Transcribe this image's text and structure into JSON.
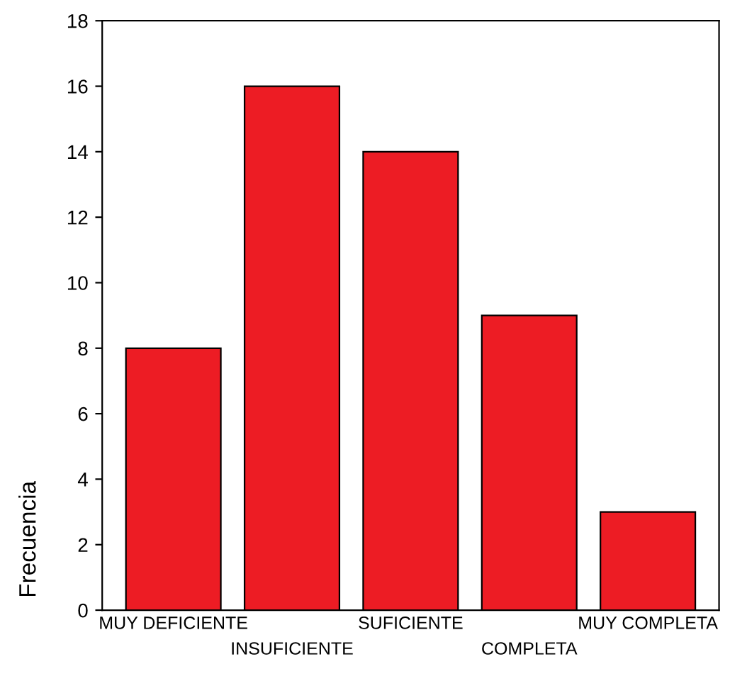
{
  "chart_data": {
    "type": "bar",
    "ylabel": "Frecuencia",
    "categories": [
      "MUY DEFICIENTE",
      "INSUFICIENTE",
      "SUFICIENTE",
      "COMPLETA",
      "MUY COMPLETA"
    ],
    "values": [
      8,
      16,
      14,
      9,
      3
    ],
    "color": "#ed1c24",
    "ylim": [
      0,
      18
    ],
    "yticks": [
      0,
      2,
      4,
      6,
      8,
      10,
      12,
      14,
      16,
      18
    ],
    "grid": false,
    "legend": false
  }
}
